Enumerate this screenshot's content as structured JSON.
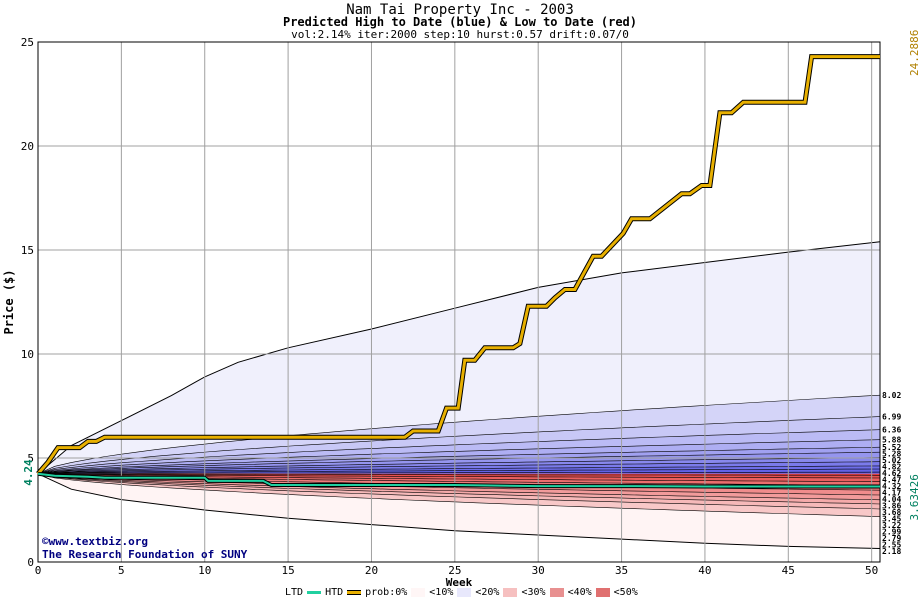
{
  "header": {
    "title": "Nam Tai Property Inc - 2003",
    "subtitle": "Predicted High to Date (blue) &  Low to Date (red)",
    "params": "vol:2.14% iter:2000 step:10 hurst:0.57 drift:0.07/0"
  },
  "credits": {
    "line1": "©www.textbiz.org",
    "line2": "The Research Foundation of SUNY"
  },
  "legend": {
    "ltd": "LTD",
    "htd": "HTD",
    "prob": "prob:0%",
    "items": [
      "<10%",
      "<20%",
      "<30%",
      "<40%",
      "<50%"
    ]
  },
  "colors": {
    "htd": "#e8b000",
    "ltd": "#20d0a0",
    "grid": "#a0a0a0",
    "high_band": "#6060f0",
    "low_band": "#f06060"
  },
  "chart_data": {
    "type": "area",
    "title": "Nam Tai Property Inc - 2003",
    "xlabel": "Week",
    "ylabel": "Price ($)",
    "xlim": [
      0,
      50.5
    ],
    "ylim": [
      0,
      25
    ],
    "x_ticks": [
      "0",
      "5",
      "10",
      "15",
      "20",
      "25",
      "30",
      "35",
      "40",
      "45",
      "50"
    ],
    "y_ticks": [
      "0",
      "5",
      "10",
      "15",
      "20",
      "25"
    ],
    "grid": true,
    "start_price": 4.24,
    "start_label": "4.24",
    "htd_end_label": "24.2886",
    "ltd_end_label": "3.63426",
    "percentile_labels": [
      {
        "label": "8.02",
        "value": 8.02
      },
      {
        "label": "6.99",
        "value": 6.99
      },
      {
        "label": "6.36",
        "value": 6.36
      },
      {
        "label": "5.88",
        "value": 5.88
      },
      {
        "label": "5.52",
        "value": 5.52
      },
      {
        "label": "5.28",
        "value": 5.28
      },
      {
        "label": "5.02",
        "value": 5.02
      },
      {
        "label": "4.82",
        "value": 4.82
      },
      {
        "label": "4.62",
        "value": 4.62
      },
      {
        "label": "4.47",
        "value": 4.47
      },
      {
        "label": "4.32",
        "value": 4.32
      },
      {
        "label": "4.17",
        "value": 4.17
      },
      {
        "label": "4.04",
        "value": 4.04
      },
      {
        "label": "3.86",
        "value": 3.86
      },
      {
        "label": "3.68",
        "value": 3.68
      },
      {
        "label": "3.45",
        "value": 3.45
      },
      {
        "label": "3.22",
        "value": 3.22
      },
      {
        "label": "2.99",
        "value": 2.99
      },
      {
        "label": "2.79",
        "value": 2.79
      },
      {
        "label": "2.55",
        "value": 2.55
      },
      {
        "label": "2.18",
        "value": 2.18
      }
    ],
    "envelope_upper": {
      "x": [
        0,
        2,
        5,
        8,
        10,
        12,
        15,
        20,
        25,
        30,
        35,
        40,
        45,
        50.5
      ],
      "y": [
        4.24,
        5.6,
        6.8,
        8.0,
        8.9,
        9.6,
        10.3,
        11.2,
        12.2,
        13.2,
        13.9,
        14.4,
        14.9,
        15.4
      ]
    },
    "envelope_lower": {
      "x": [
        0,
        2,
        5,
        10,
        15,
        20,
        25,
        30,
        35,
        40,
        45,
        50.5
      ],
      "y": [
        4.24,
        3.5,
        3.0,
        2.5,
        2.1,
        1.8,
        1.5,
        1.3,
        1.1,
        0.9,
        0.75,
        0.65
      ]
    },
    "series": [
      {
        "name": "HTD",
        "x": [
          0,
          0.6,
          1.2,
          2.5,
          3.0,
          3.5,
          4.0,
          22.0,
          22.5,
          24.0,
          24.5,
          25.2,
          25.6,
          26.2,
          26.8,
          28.5,
          28.9,
          29.4,
          30.5,
          31.0,
          31.6,
          32.2,
          33.3,
          33.8,
          35.1,
          35.6,
          36.2,
          36.7,
          38.6,
          39.1,
          39.8,
          40.3,
          40.9,
          41.6,
          42.3,
          42.8,
          46.0,
          46.4,
          50.5
        ],
        "y": [
          4.24,
          4.8,
          5.5,
          5.5,
          5.8,
          5.8,
          6.0,
          6.0,
          6.3,
          6.3,
          7.4,
          7.4,
          9.7,
          9.7,
          10.3,
          10.3,
          10.5,
          12.3,
          12.3,
          12.7,
          13.1,
          13.1,
          14.7,
          14.7,
          15.8,
          16.5,
          16.5,
          16.5,
          17.7,
          17.7,
          18.1,
          18.1,
          21.6,
          21.6,
          22.1,
          22.1,
          22.1,
          24.3,
          24.3
        ]
      },
      {
        "name": "LTD",
        "x": [
          0,
          1,
          3,
          4,
          8,
          10,
          10.2,
          12,
          13.5,
          14,
          14.5,
          20,
          25,
          30,
          35,
          40,
          45,
          50.5
        ],
        "y": [
          4.24,
          4.15,
          4.1,
          4.05,
          4.05,
          4.05,
          3.9,
          3.9,
          3.9,
          3.7,
          3.7,
          3.7,
          3.7,
          3.65,
          3.65,
          3.63,
          3.63,
          3.63
        ]
      }
    ]
  }
}
